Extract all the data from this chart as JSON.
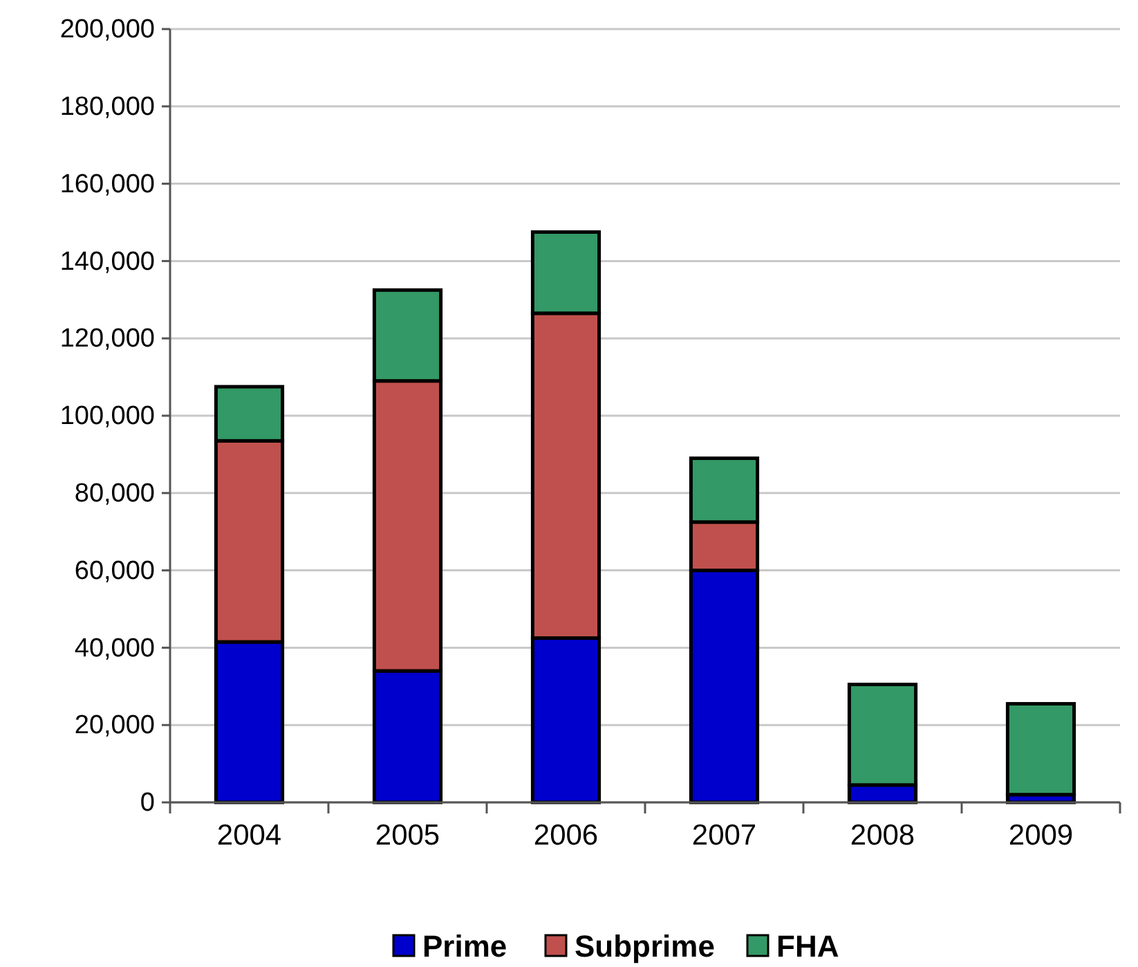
{
  "chart_data": {
    "type": "bar",
    "stacked": true,
    "categories": [
      "2004",
      "2005",
      "2006",
      "2007",
      "2008",
      "2009"
    ],
    "series": [
      {
        "name": "Prime",
        "color": "#0000cc",
        "values": [
          41500,
          34000,
          42500,
          60000,
          4500,
          2000
        ]
      },
      {
        "name": "Subprime",
        "color": "#c0504d",
        "values": [
          52000,
          75000,
          84000,
          12500,
          null,
          0
        ]
      },
      {
        "name": "FHA",
        "color": "#339966",
        "values": [
          14000,
          23500,
          21000,
          16500,
          26000,
          23500
        ]
      }
    ],
    "ylim": [
      0,
      200000
    ],
    "yticks": [
      {
        "value": 0,
        "label": "0"
      },
      {
        "value": 20000,
        "label": "20,000"
      },
      {
        "value": 40000,
        "label": "40,000"
      },
      {
        "value": 60000,
        "label": "60,000"
      },
      {
        "value": 80000,
        "label": "80,000"
      },
      {
        "value": 100000,
        "label": "100,000"
      },
      {
        "value": 120000,
        "label": "120,000"
      },
      {
        "value": 140000,
        "label": "140,000"
      },
      {
        "value": 160000,
        "label": "160,000"
      },
      {
        "value": 180000,
        "label": "180,000"
      },
      {
        "value": 200000,
        "label": "200,000"
      }
    ],
    "grid": "y",
    "legend": "bottom"
  }
}
